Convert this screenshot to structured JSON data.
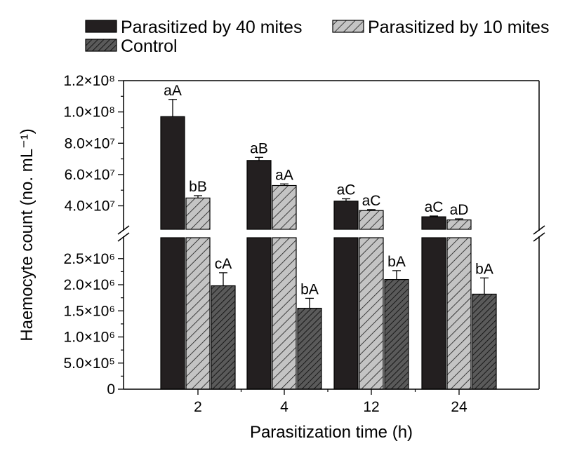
{
  "chart_data": {
    "type": "bar",
    "xlabel": "Parasitization time (h)",
    "ylabel": "Haemocyte count (no. mL⁻¹)",
    "categories": [
      "2",
      "4",
      "12",
      "24"
    ],
    "series": [
      {
        "name": "Parasitized by 40 mites",
        "color": "#231f20",
        "values": [
          97000000,
          69000000,
          43000000,
          33000000
        ],
        "errors": [
          11000000,
          2000000,
          1500000,
          500000
        ],
        "letters": [
          "aA",
          "aB",
          "aC",
          "aC"
        ]
      },
      {
        "name": "Parasitized by 10 mites",
        "color": "#bdbdbd",
        "values": [
          45000000,
          53000000,
          37000000,
          31000000
        ],
        "errors": [
          1500000,
          1000000,
          600000,
          700000
        ],
        "letters": [
          "bB",
          "aA",
          "aC",
          "aD"
        ]
      },
      {
        "name": "Control",
        "color": "#4a4a4a",
        "values": [
          1980000,
          1550000,
          2100000,
          1820000
        ],
        "errors": [
          250000,
          190000,
          170000,
          310000
        ],
        "letters": [
          "cA",
          "bA",
          "bA",
          "bA"
        ]
      }
    ],
    "y_axis_break": true,
    "upper_segment": {
      "ylim": [
        25000000,
        120000000
      ],
      "ticks": [
        {
          "value": 40000000,
          "label": "4.0×10⁷"
        },
        {
          "value": 60000000,
          "label": "6.0×10⁷"
        },
        {
          "value": 80000000,
          "label": "8.0×10⁷"
        },
        {
          "value": 100000000,
          "label": "1.0×10⁸"
        },
        {
          "value": 120000000,
          "label": "1.2×10⁸"
        }
      ]
    },
    "lower_segment": {
      "ylim": [
        0,
        2900000
      ],
      "ticks": [
        {
          "value": 0,
          "label": "0"
        },
        {
          "value": 500000,
          "label": "5.0×10⁵"
        },
        {
          "value": 1000000,
          "label": "1.0×10⁶"
        },
        {
          "value": 1500000,
          "label": "1.5×10⁶"
        },
        {
          "value": 2000000,
          "label": "2.0×10⁶"
        },
        {
          "value": 2500000,
          "label": "2.5×10⁶"
        }
      ]
    },
    "legend": {
      "position": "top"
    },
    "grid": false
  }
}
